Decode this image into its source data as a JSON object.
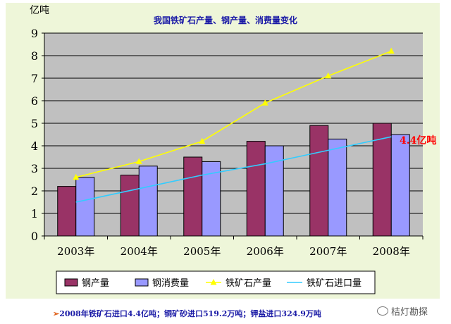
{
  "chart_data": {
    "type": "bar",
    "title": "我国铁矿石产量、钢产量、消费量变化",
    "ylabel": "亿吨",
    "ylim": [
      0,
      9
    ],
    "yticks": [
      "0",
      "1",
      "2",
      "3",
      "4",
      "5",
      "6",
      "7",
      "8",
      "9"
    ],
    "categories": [
      "2003年",
      "2004年",
      "2005年",
      "2006年",
      "2007年",
      "2008年"
    ],
    "series": [
      {
        "name": "钢产量",
        "kind": "bar",
        "color": "#993366",
        "values": [
          2.2,
          2.7,
          3.5,
          4.2,
          4.9,
          5.0
        ]
      },
      {
        "name": "钢消费量",
        "kind": "bar",
        "color": "#9999ff",
        "values": [
          2.6,
          3.1,
          3.3,
          4.0,
          4.3,
          4.5
        ]
      },
      {
        "name": "铁矿石产量",
        "kind": "line",
        "color": "#ffff00",
        "marker": "triangle",
        "values": [
          2.6,
          3.3,
          4.2,
          5.9,
          7.1,
          8.2
        ]
      },
      {
        "name": "铁矿石进口量",
        "kind": "line",
        "color": "#33ccff",
        "marker": "none",
        "values": [
          1.5,
          2.1,
          2.7,
          3.2,
          3.8,
          4.4
        ]
      }
    ],
    "annotations": [
      {
        "text": "4.4亿吨",
        "color": "#ff0000"
      }
    ],
    "grid": true,
    "legend": "bottom"
  },
  "footer": {
    "note": "2008年铁矿石进口4.4亿吨；铜矿砂进口519.2万吨；钾盐进口324.9万吨",
    "arrow": "➢"
  },
  "watermark": {
    "text": "桔灯勘探"
  }
}
